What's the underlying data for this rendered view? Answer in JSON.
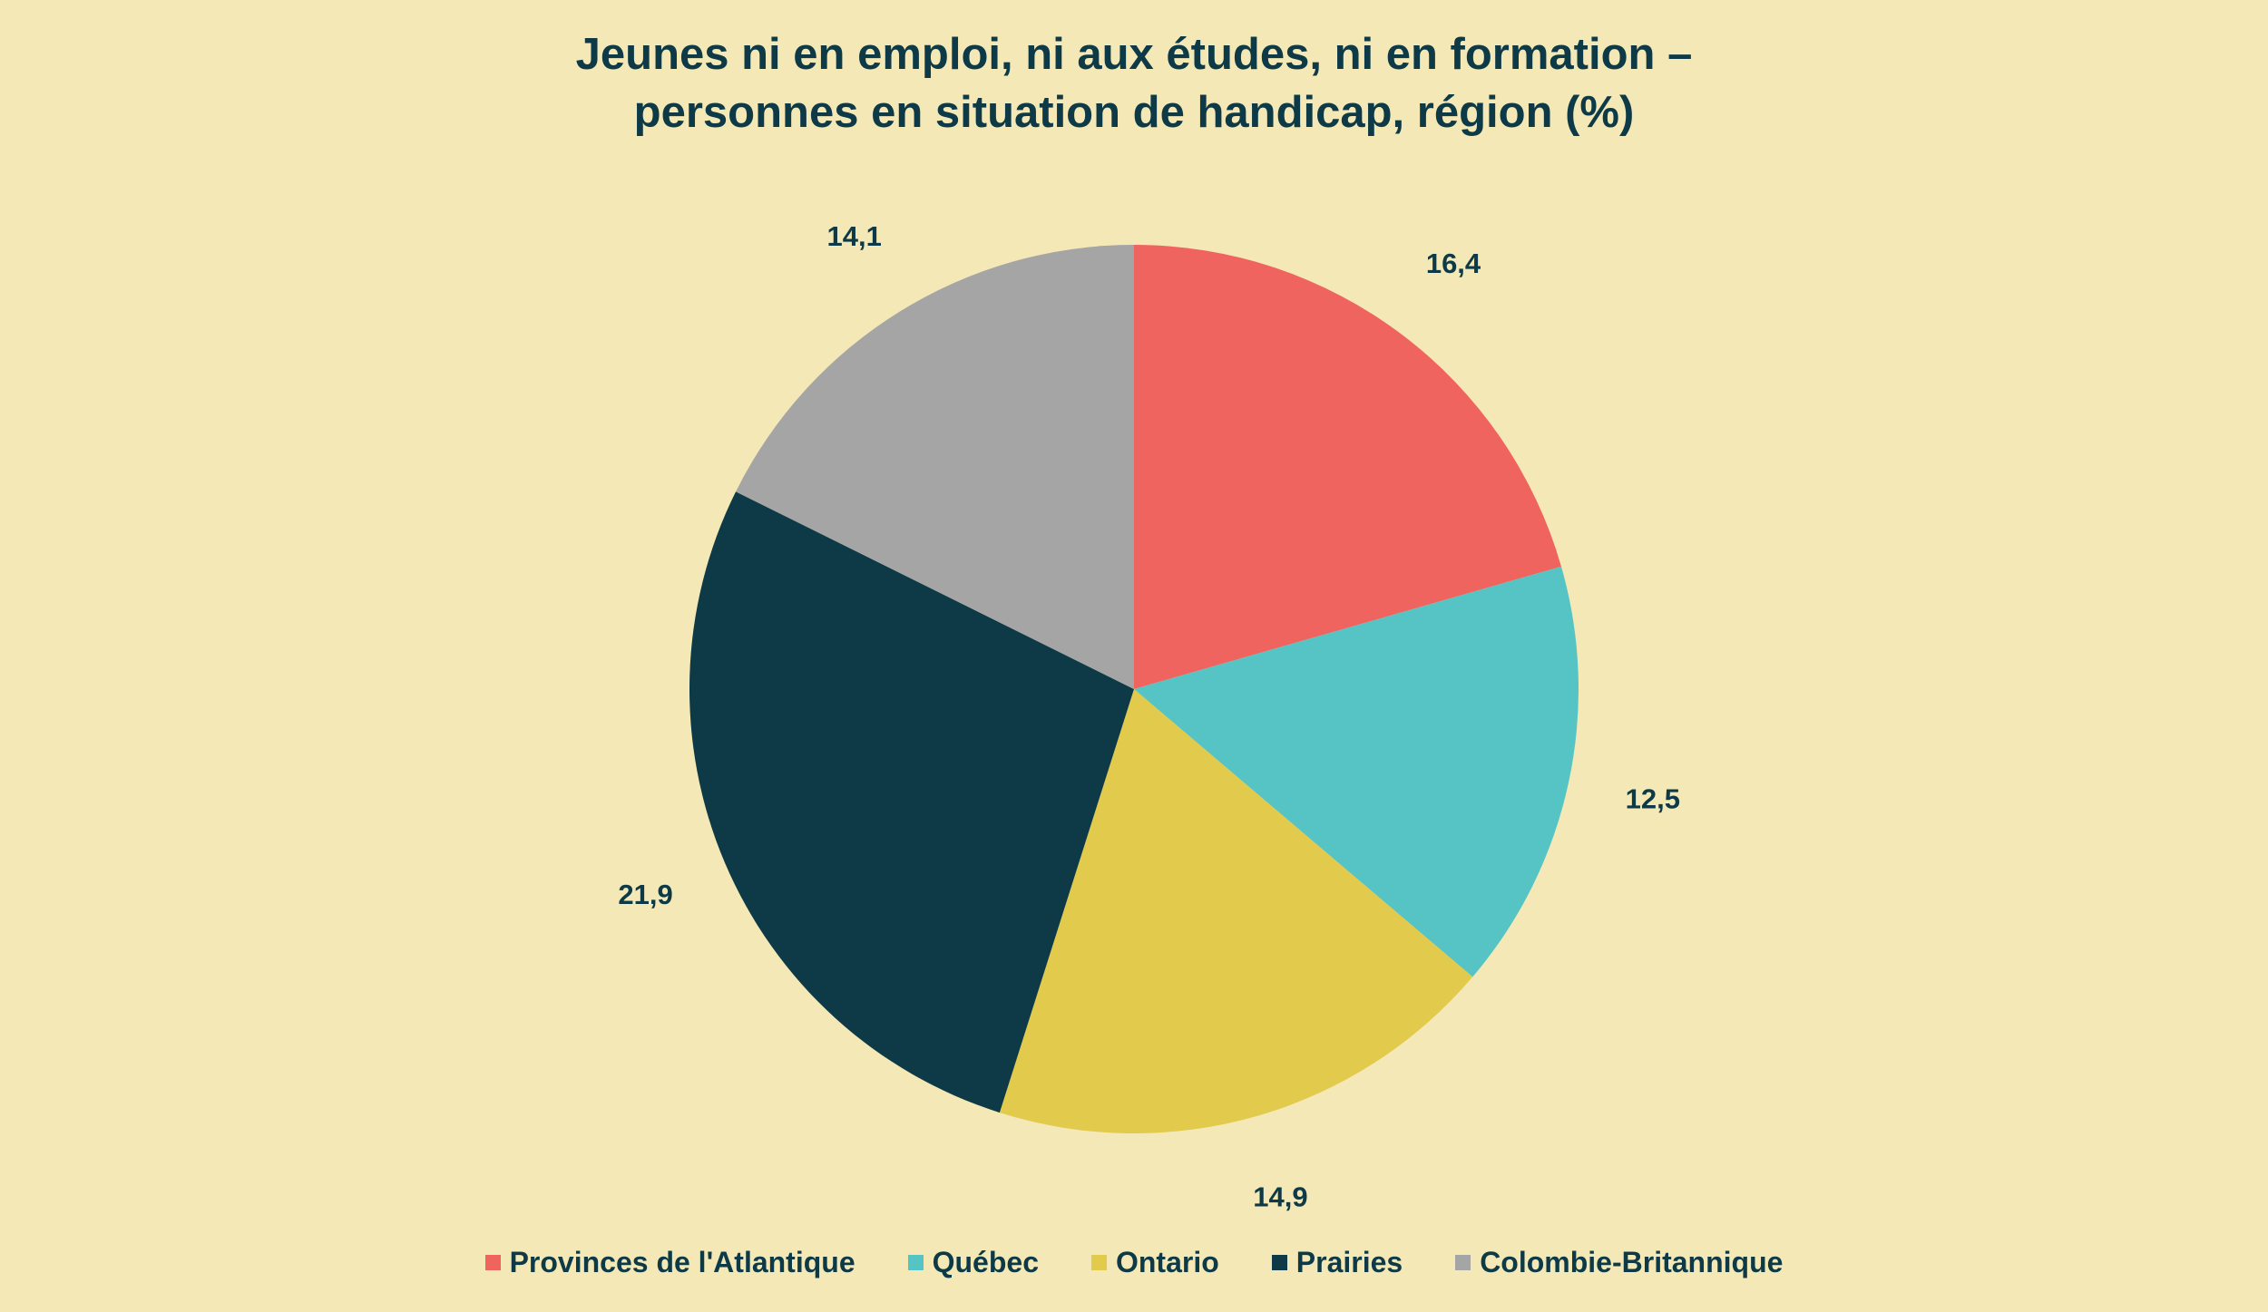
{
  "chart_data": {
    "type": "pie",
    "title_lines": [
      "Jeunes ni en emploi, ni aux études, ni en formation –",
      "personnes en situation de handicap, région (%)"
    ],
    "categories": [
      "Provinces de l'Atlantique",
      "Québec",
      "Ontario",
      "Prairies",
      "Colombie-Britannique"
    ],
    "values": [
      16.4,
      12.5,
      14.9,
      21.9,
      14.1
    ],
    "value_labels": [
      "16,4",
      "12,5",
      "14,9",
      "21,9",
      "14,1"
    ],
    "colors": [
      "#f0645f",
      "#56c3c5",
      "#e2ca4d",
      "#0e3a47",
      "#a5a5a5"
    ],
    "start": "12 o'clock, clockwise",
    "legend_position": "bottom"
  }
}
